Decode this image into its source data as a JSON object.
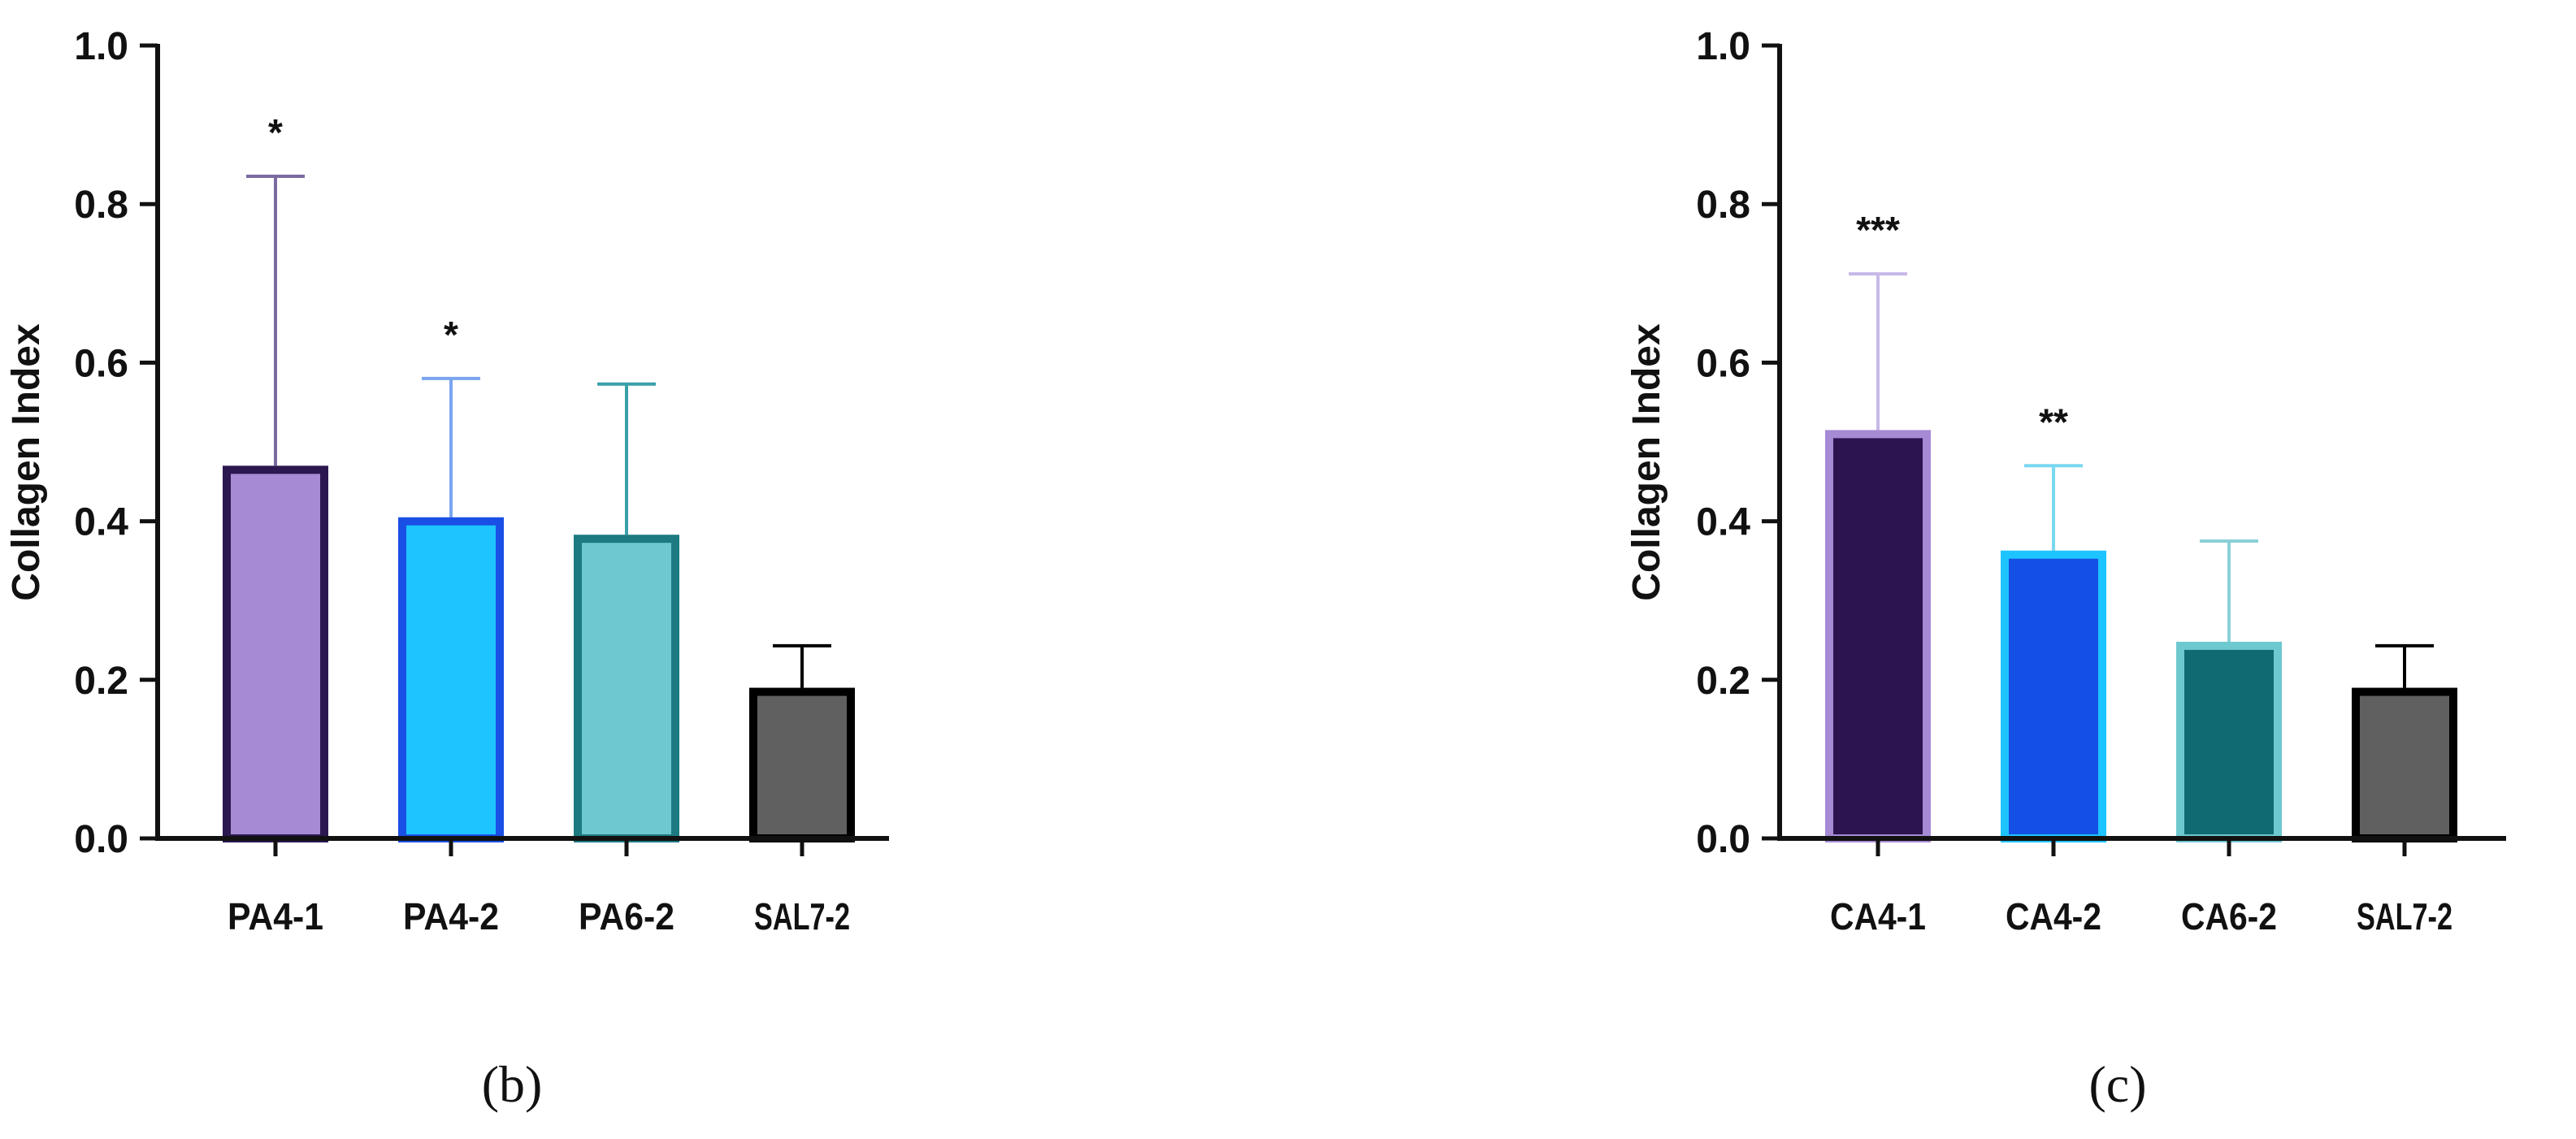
{
  "chart_data": [
    {
      "type": "bar",
      "panel_label": "(b)",
      "ylabel": "Collagen Index",
      "ylim": [
        0,
        1.0
      ],
      "yticks": [
        "0.0",
        "0.2",
        "0.4",
        "0.6",
        "0.8",
        "1.0"
      ],
      "categories": [
        "PA4-1",
        "PA4-2",
        "PA6-2",
        "SAL7-2"
      ],
      "values": [
        0.47,
        0.405,
        0.383,
        0.19
      ],
      "error_upper": [
        0.835,
        0.58,
        0.573,
        0.243
      ],
      "annotations": [
        "*",
        "*",
        "",
        ""
      ],
      "fill_colors": [
        "#a68ad4",
        "#1ec4ff",
        "#6ec8cf",
        "#606060"
      ],
      "edge_colors": [
        "#2c1850",
        "#1a4fe6",
        "#1c7a80",
        "#000000"
      ],
      "error_colors": [
        "#7a6aa0",
        "#7aa5f0",
        "#3aa0a8",
        "#000000"
      ]
    },
    {
      "type": "bar",
      "panel_label": "(c)",
      "ylabel": "Collagen Index",
      "ylim": [
        0,
        1.0
      ],
      "yticks": [
        "0.0",
        "0.2",
        "0.4",
        "0.6",
        "0.8",
        "1.0"
      ],
      "categories": [
        "CA4-1",
        "CA4-2",
        "CA6-2",
        "SAL7-2"
      ],
      "values": [
        0.515,
        0.363,
        0.248,
        0.19
      ],
      "error_upper": [
        0.712,
        0.47,
        0.375,
        0.243
      ],
      "annotations": [
        "***",
        "**",
        "",
        ""
      ],
      "fill_colors": [
        "#2c1450",
        "#1450e6",
        "#0f6a72",
        "#606060"
      ],
      "edge_colors": [
        "#a68ad4",
        "#1ec4ff",
        "#6ec8cf",
        "#000000"
      ],
      "error_colors": [
        "#c8b8e8",
        "#7ad8f0",
        "#8ad0d8",
        "#000000"
      ]
    }
  ]
}
